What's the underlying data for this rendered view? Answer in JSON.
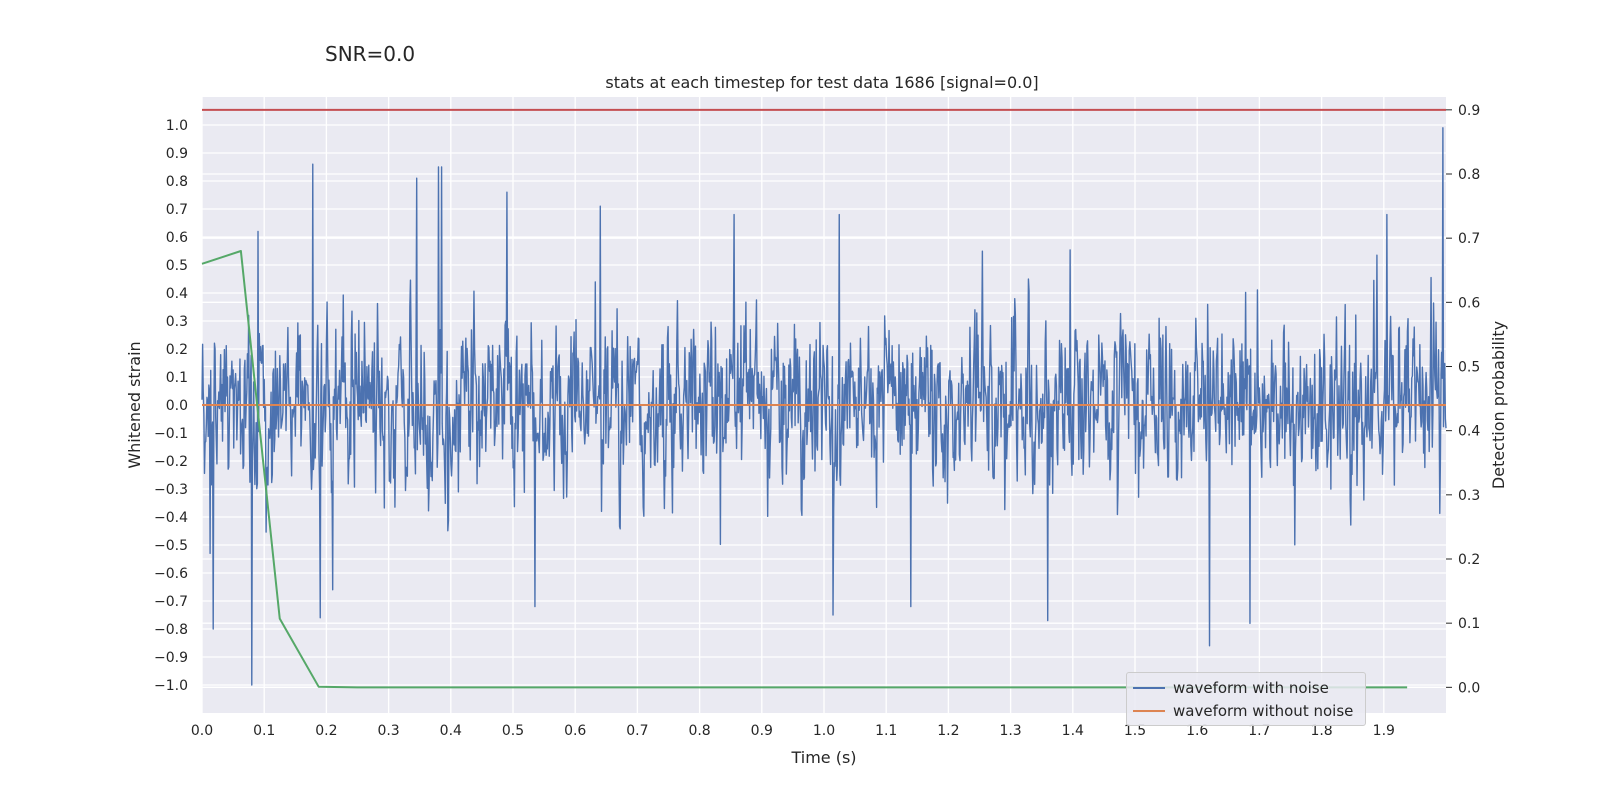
{
  "snr_label": "SNR=0.0",
  "chart_data": {
    "type": "line",
    "title": "stats at each timestep for test data 1686 [signal=0.0]",
    "xlabel": "Time (s)",
    "ylabel_left": "Whitened strain",
    "ylabel_right": "Detection probability",
    "xlim": [
      0.0,
      2.0
    ],
    "ylim_left": [
      -1.1,
      1.1
    ],
    "ylim_right": [
      -0.04,
      0.92
    ],
    "x_ticks": [
      "0.0",
      "0.1",
      "0.2",
      "0.3",
      "0.4",
      "0.5",
      "0.6",
      "0.7",
      "0.8",
      "0.9",
      "1.0",
      "1.1",
      "1.2",
      "1.3",
      "1.4",
      "1.5",
      "1.6",
      "1.7",
      "1.8",
      "1.9"
    ],
    "x_tick_values": [
      0.0,
      0.1,
      0.2,
      0.3,
      0.4,
      0.5,
      0.6,
      0.7,
      0.8,
      0.9,
      1.0,
      1.1,
      1.2,
      1.3,
      1.4,
      1.5,
      1.6,
      1.7,
      1.8,
      1.9
    ],
    "y_left_ticks": [
      "1.0",
      "0.9",
      "0.8",
      "0.7",
      "0.6",
      "0.5",
      "0.4",
      "0.3",
      "0.2",
      "0.1",
      "0.0",
      "−0.1",
      "−0.2",
      "−0.3",
      "−0.4",
      "−0.5",
      "−0.6",
      "−0.7",
      "−0.8",
      "−0.9",
      "−1.0"
    ],
    "y_left_tick_values": [
      1.0,
      0.9,
      0.8,
      0.7,
      0.6,
      0.5,
      0.4,
      0.3,
      0.2,
      0.1,
      0.0,
      -0.1,
      -0.2,
      -0.3,
      -0.4,
      -0.5,
      -0.6,
      -0.7,
      -0.8,
      -0.9,
      -1.0
    ],
    "y_right_ticks": [
      "0.9",
      "0.8",
      "0.7",
      "0.6",
      "0.5",
      "0.4",
      "0.3",
      "0.2",
      "0.1",
      "0.0"
    ],
    "y_right_tick_values": [
      0.9,
      0.8,
      0.7,
      0.6,
      0.5,
      0.4,
      0.3,
      0.2,
      0.1,
      0.0
    ],
    "series": [
      {
        "name": "waveform with noise",
        "axis": "left",
        "color": "#4c72b0",
        "generated": true,
        "sample_count": 2000,
        "seed": 1686,
        "amplitude": 0.3,
        "peaks": [
          {
            "x": 0.013,
            "y": -0.53
          },
          {
            "x": 0.018,
            "y": -0.8
          },
          {
            "x": 0.08,
            "y": -1.0
          },
          {
            "x": 0.09,
            "y": 0.62
          },
          {
            "x": 0.178,
            "y": 0.86
          },
          {
            "x": 0.19,
            "y": -0.76
          },
          {
            "x": 0.21,
            "y": -0.66
          },
          {
            "x": 0.345,
            "y": 0.81
          },
          {
            "x": 0.38,
            "y": 0.85
          },
          {
            "x": 0.385,
            "y": 0.85
          },
          {
            "x": 0.49,
            "y": 0.76
          },
          {
            "x": 0.535,
            "y": -0.72
          },
          {
            "x": 0.64,
            "y": 0.71
          },
          {
            "x": 0.855,
            "y": 0.68
          },
          {
            "x": 1.015,
            "y": -0.75
          },
          {
            "x": 1.025,
            "y": 0.68
          },
          {
            "x": 1.14,
            "y": -0.72
          },
          {
            "x": 1.36,
            "y": -0.77
          },
          {
            "x": 1.62,
            "y": -0.86
          },
          {
            "x": 1.685,
            "y": -0.78
          },
          {
            "x": 1.905,
            "y": 0.68
          },
          {
            "x": 1.995,
            "y": 0.99
          }
        ]
      },
      {
        "name": "waveform without noise",
        "axis": "left",
        "color": "#dd8452",
        "x": [
          0.0,
          2.0
        ],
        "y": [
          0.0,
          0.0
        ]
      },
      {
        "name": "detection probability",
        "axis": "right",
        "color": "#55a868",
        "x": [
          0.0,
          0.0625,
          0.125,
          0.1875,
          0.25,
          0.5,
          0.75,
          1.0,
          1.25,
          1.5,
          1.75,
          1.9375
        ],
        "y": [
          0.66,
          0.68,
          0.107,
          0.001,
          0.0,
          0.0,
          0.0,
          0.0,
          0.0,
          0.0,
          0.0,
          0.0
        ]
      },
      {
        "name": "threshold",
        "axis": "right",
        "color": "#c44e52",
        "x": [
          0.0,
          2.0
        ],
        "y": [
          0.9,
          0.9
        ]
      }
    ],
    "legend": {
      "position": "lower-right",
      "entries": [
        {
          "label": "waveform with noise",
          "color": "#4c72b0"
        },
        {
          "label": "waveform without noise",
          "color": "#dd8452"
        }
      ]
    }
  }
}
